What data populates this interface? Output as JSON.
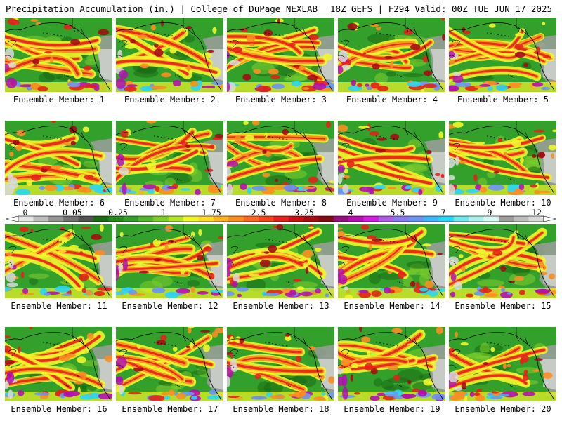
{
  "header": {
    "left_title": "Precipitation Accumulation (in.) | College of DuPage NEXLAB",
    "right_title": "18Z GEFS | F294 Valid: 00Z TUE JUN 17 2025"
  },
  "colorbar": {
    "tick_labels": [
      "0",
      "0.05",
      "0.25",
      "1",
      "1.75",
      "2.5",
      "3.25",
      "4",
      "5.5",
      "7",
      "9",
      "12"
    ],
    "colors": [
      "#e6e6e6",
      "#bdbdbd",
      "#969696",
      "#737373",
      "#525252",
      "#1a6b14",
      "#218a1a",
      "#33a02c",
      "#52b82c",
      "#7fcd2b",
      "#b6e22a",
      "#f0f62a",
      "#fdd927",
      "#fdb324",
      "#fc8d21",
      "#f86a1e",
      "#f2461b",
      "#e32219",
      "#c41216",
      "#a30d14",
      "#820a12",
      "#95117a",
      "#b40fb0",
      "#d21ee0",
      "#b05be8",
      "#8c78f0",
      "#6a95f5",
      "#3eb6fa",
      "#29d6f5",
      "#6fe8e8",
      "#a9f2ee",
      "#d9f7f3",
      "#9e9e9e",
      "#bdbdbd",
      "#d9d9d9"
    ],
    "palette": {
      "green": "#33a02c",
      "dark_green": "#1a6b14",
      "light_green": "#7fcd2b",
      "yellow": "#f0f62a",
      "orange": "#fc8d21",
      "red": "#e32219",
      "dark_red": "#a30d14",
      "magenta": "#b40fb0",
      "blue": "#6a95f5",
      "cyan": "#29d6f5",
      "gray": "#9e9e9e",
      "light_gray": "#d9d9d9"
    }
  },
  "members": [
    {
      "label": "Ensemble Member: 1"
    },
    {
      "label": "Ensemble Member: 2"
    },
    {
      "label": "Ensemble Member: 3"
    },
    {
      "label": "Ensemble Member: 4"
    },
    {
      "label": "Ensemble Member: 5"
    },
    {
      "label": "Ensemble Member: 6"
    },
    {
      "label": "Ensemble Member: 7"
    },
    {
      "label": "Ensemble Member: 8"
    },
    {
      "label": "Ensemble Member: 9"
    },
    {
      "label": "Ensemble Member: 10"
    },
    {
      "label": "Ensemble Member: 11"
    },
    {
      "label": "Ensemble Member: 12"
    },
    {
      "label": "Ensemble Member: 13"
    },
    {
      "label": "Ensemble Member: 14"
    },
    {
      "label": "Ensemble Member: 15"
    },
    {
      "label": "Ensemble Member: 16"
    },
    {
      "label": "Ensemble Member: 17"
    },
    {
      "label": "Ensemble Member: 18"
    },
    {
      "label": "Ensemble Member: 19"
    },
    {
      "label": "Ensemble Member: 20"
    }
  ]
}
